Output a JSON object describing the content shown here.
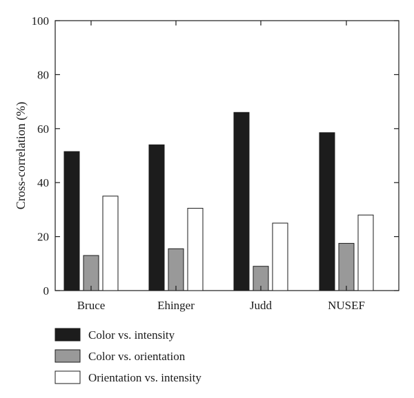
{
  "chart_data": {
    "type": "bar",
    "title": "",
    "xlabel": "",
    "ylabel": "Cross-correlation (%)",
    "ylim": [
      0,
      100
    ],
    "yticks": [
      0,
      20,
      40,
      60,
      80,
      100
    ],
    "grid": false,
    "legend_position": "bottom-left",
    "categories": [
      "Bruce",
      "Ehinger",
      "Judd",
      "NUSEF"
    ],
    "series": [
      {
        "name": "Color vs. intensity",
        "color": "#1c1c1c",
        "values": [
          51.5,
          54,
          66,
          58.5
        ]
      },
      {
        "name": "Color vs. orientation",
        "color": "#999999",
        "values": [
          13,
          15.5,
          9,
          17.5
        ]
      },
      {
        "name": "Orientation vs. intensity",
        "color": "#ffffff",
        "values": [
          35,
          30.5,
          25,
          28
        ]
      }
    ]
  }
}
